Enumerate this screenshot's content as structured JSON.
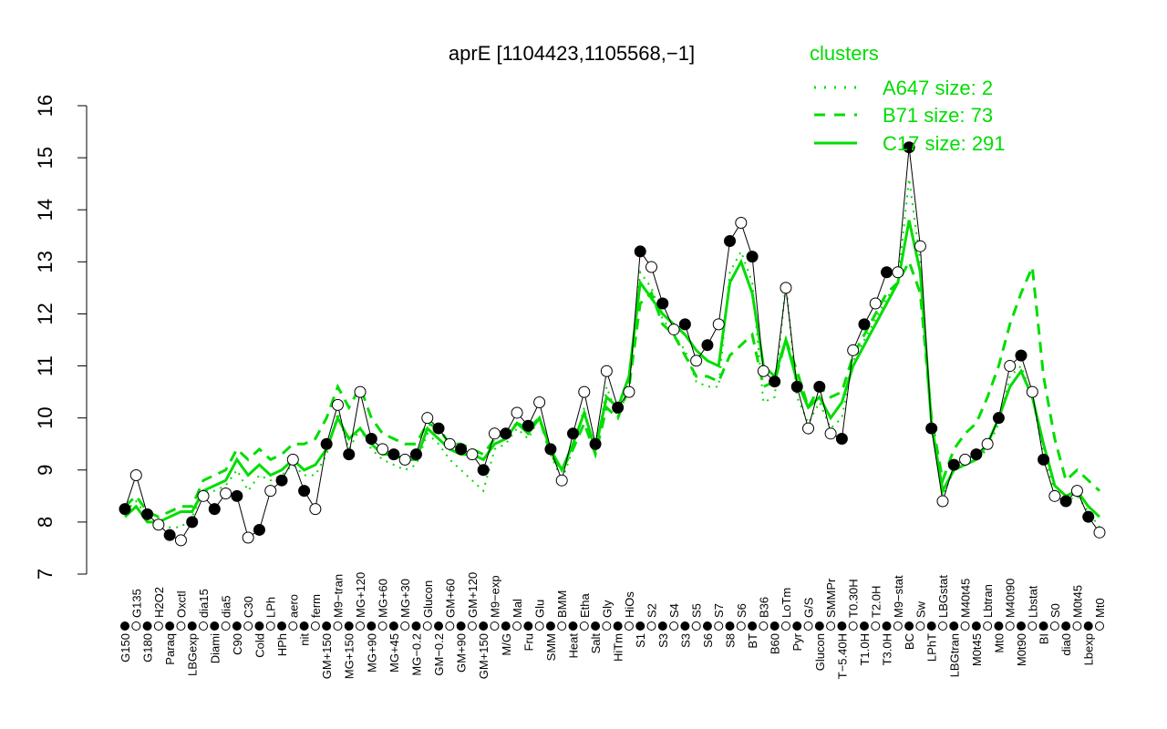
{
  "chart_data": {
    "type": "line",
    "title": "aprE [1104423,1105568,−1]",
    "xlabel": "",
    "ylabel": "",
    "ylim": [
      7,
      16
    ],
    "yticks": [
      "7",
      "8",
      "9",
      "10",
      "11",
      "12",
      "13",
      "14",
      "15",
      "16"
    ],
    "grid": false,
    "legend": {
      "title": "clusters",
      "placement": "top-right",
      "entries": [
        {
          "label": "A647 size: 2",
          "style": "dotted"
        },
        {
          "label": "B71 size: 73",
          "style": "dashed"
        },
        {
          "label": "C17 size: 291",
          "style": "solid"
        }
      ]
    },
    "line_color": "#00dd00",
    "categories": [
      "G150",
      "G135",
      "G180",
      "H2O2",
      "Paraq",
      "Oxctl",
      "LBGexp",
      "dia15",
      "Diami",
      "dia5",
      "C90",
      "C30",
      "Cold",
      "LPh",
      "HPh",
      "aero",
      "nit",
      "ferm",
      "GM+150",
      "M9−tran",
      "MG+150",
      "MG+120",
      "MG+90",
      "MG+60",
      "MG+45",
      "MG+30",
      "MG−0.2",
      "Glucon",
      "GM−0.2",
      "GM+60",
      "GM+90",
      "GM+120",
      "GM+150",
      "M9−exp",
      "M/G",
      "Mal",
      "Fru",
      "Glu",
      "SMM",
      "BMM",
      "Heat",
      "Etha",
      "Salt",
      "Gly",
      "HiTm",
      "HiOs",
      "S1",
      "S2",
      "S3",
      "S4",
      "S3",
      "S5",
      "S6",
      "S7",
      "S8",
      "S6",
      "BT",
      "B36",
      "B60",
      "LoTm",
      "Pyr",
      "G/S",
      "Glucon",
      "SMMPr",
      "T−5.40H",
      "T0.30H",
      "T1.0H",
      "T2.0H",
      "T3.0H",
      "M9−stat",
      "BC",
      "Sw",
      "LPhT",
      "LBGstat",
      "LBGtran",
      "M40t45",
      "M0t45",
      "Lbtran",
      "Mt0",
      "M40t90",
      "M0t90",
      "Lbstat",
      "BI",
      "S0",
      "dia0",
      "M0t45",
      "Lbexp",
      "Mt0"
    ],
    "points": [
      8.25,
      8.9,
      8.15,
      7.95,
      7.75,
      7.65,
      8.0,
      8.5,
      8.25,
      8.55,
      8.5,
      7.7,
      7.85,
      8.6,
      8.8,
      9.2,
      8.6,
      8.25,
      9.5,
      10.25,
      9.3,
      10.5,
      9.6,
      9.4,
      9.3,
      9.2,
      9.3,
      10.0,
      9.8,
      9.5,
      9.4,
      9.3,
      9.0,
      9.7,
      9.7,
      10.1,
      9.85,
      10.3,
      9.4,
      8.8,
      9.7,
      10.5,
      9.5,
      10.9,
      10.2,
      10.5,
      13.2,
      12.9,
      12.2,
      11.7,
      11.8,
      11.1,
      11.4,
      11.8,
      13.4,
      13.75,
      13.1,
      10.9,
      10.7,
      12.5,
      10.6,
      9.8,
      10.6,
      9.7,
      9.6,
      11.3,
      11.8,
      12.2,
      12.8,
      12.8,
      15.2,
      13.3,
      9.8,
      8.4,
      9.1,
      9.2,
      9.3,
      9.5,
      10.0,
      11.0,
      11.2,
      10.5,
      9.2,
      8.5,
      8.4,
      8.6,
      8.1,
      7.8
    ],
    "series": [
      {
        "name": "C17 size: 291",
        "values": [
          8.1,
          8.3,
          8.0,
          8.0,
          8.1,
          8.2,
          8.2,
          8.6,
          8.7,
          8.8,
          9.2,
          8.9,
          9.1,
          8.9,
          9.0,
          9.2,
          9.0,
          9.1,
          9.4,
          10.0,
          9.6,
          9.8,
          9.5,
          9.3,
          9.3,
          9.2,
          9.2,
          9.8,
          9.6,
          9.4,
          9.3,
          9.3,
          9.2,
          9.5,
          9.6,
          9.9,
          9.7,
          10.0,
          9.4,
          9.0,
          9.5,
          10.1,
          9.4,
          10.4,
          10.2,
          10.8,
          12.6,
          12.3,
          12.0,
          11.8,
          11.6,
          11.3,
          11.1,
          11.0,
          12.6,
          13.0,
          12.4,
          11.0,
          10.8,
          11.5,
          10.7,
          10.2,
          10.4,
          10.0,
          10.3,
          11.0,
          11.4,
          11.8,
          12.2,
          12.6,
          13.8,
          12.8,
          9.9,
          8.6,
          9.0,
          9.1,
          9.2,
          9.5,
          10.0,
          10.6,
          10.9,
          10.4,
          9.5,
          8.7,
          8.5,
          8.6,
          8.3,
          8.1
        ]
      },
      {
        "name": "B71 size: 73",
        "values": [
          8.3,
          8.5,
          8.2,
          8.1,
          8.2,
          8.3,
          8.3,
          8.8,
          8.9,
          9.0,
          9.4,
          9.2,
          9.4,
          9.2,
          9.3,
          9.5,
          9.5,
          9.6,
          10.0,
          10.6,
          10.2,
          10.6,
          10.0,
          9.7,
          9.6,
          9.5,
          9.5,
          9.9,
          9.8,
          9.5,
          9.5,
          9.4,
          9.3,
          9.6,
          9.7,
          9.9,
          9.8,
          10.0,
          9.3,
          9.0,
          9.4,
          9.9,
          9.3,
          10.2,
          10.0,
          10.6,
          12.2,
          12.4,
          11.8,
          11.6,
          11.2,
          10.8,
          10.8,
          10.7,
          11.2,
          11.4,
          11.6,
          10.6,
          10.7,
          11.5,
          10.9,
          10.2,
          10.6,
          10.4,
          10.5,
          11.2,
          11.6,
          12.0,
          12.4,
          12.6,
          13.0,
          12.4,
          10.0,
          8.8,
          9.4,
          9.7,
          9.9,
          10.4,
          11.0,
          11.8,
          12.4,
          12.9,
          10.8,
          9.6,
          8.8,
          9.0,
          8.8,
          8.6
        ]
      },
      {
        "name": "A647 size: 2",
        "values": [
          8.2,
          8.4,
          8.1,
          8.0,
          7.9,
          7.9,
          8.1,
          8.6,
          8.6,
          8.7,
          9.0,
          8.6,
          8.9,
          8.8,
          8.9,
          9.1,
          8.9,
          8.9,
          9.3,
          10.1,
          9.4,
          9.8,
          9.4,
          9.2,
          9.1,
          9.0,
          9.1,
          9.7,
          9.5,
          9.2,
          9.0,
          8.8,
          8.6,
          9.4,
          9.5,
          9.8,
          9.6,
          10.0,
          9.3,
          8.8,
          9.4,
          10.2,
          9.3,
          10.6,
          10.0,
          10.6,
          12.8,
          12.5,
          11.9,
          11.6,
          11.3,
          10.7,
          10.6,
          10.6,
          12.8,
          13.2,
          12.6,
          10.3,
          10.4,
          12.6,
          10.4,
          9.9,
          10.3,
          9.8,
          10.0,
          11.1,
          11.5,
          11.9,
          12.3,
          12.6,
          14.6,
          13.0,
          9.8,
          8.5,
          9.0,
          9.1,
          9.2,
          9.4,
          9.9,
          10.8,
          11.0,
          10.4,
          9.3,
          8.6,
          8.4,
          8.5,
          8.2,
          7.9
        ]
      }
    ]
  }
}
